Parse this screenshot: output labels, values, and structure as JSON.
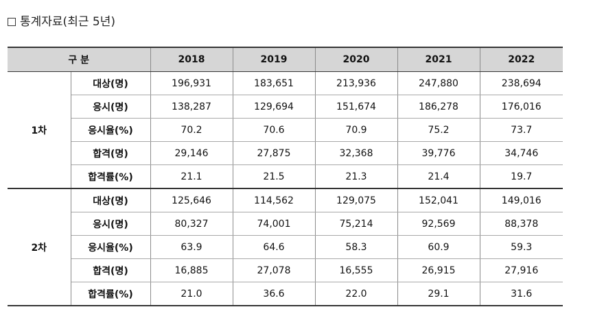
{
  "title": "통계자료(최근 5년)",
  "table": {
    "header": {
      "category": "구 분",
      "years": [
        "2018",
        "2019",
        "2020",
        "2021",
        "2022"
      ]
    },
    "groups": [
      {
        "name": "1차",
        "rows": [
          {
            "label": "대상(명)",
            "values": [
              "196,931",
              "183,651",
              "213,936",
              "247,880",
              "238,694"
            ]
          },
          {
            "label": "응시(명)",
            "values": [
              "138,287",
              "129,694",
              "151,674",
              "186,278",
              "176,016"
            ]
          },
          {
            "label": "응시율(%)",
            "values": [
              "70.2",
              "70.6",
              "70.9",
              "75.2",
              "73.7"
            ]
          },
          {
            "label": "합격(명)",
            "values": [
              "29,146",
              "27,875",
              "32,368",
              "39,776",
              "34,746"
            ]
          },
          {
            "label": "합격률(%)",
            "values": [
              "21.1",
              "21.5",
              "21.3",
              "21.4",
              "19.7"
            ]
          }
        ]
      },
      {
        "name": "2차",
        "rows": [
          {
            "label": "대상(명)",
            "values": [
              "125,646",
              "114,562",
              "129,075",
              "152,041",
              "149,016"
            ]
          },
          {
            "label": "응시(명)",
            "values": [
              "80,327",
              "74,001",
              "75,214",
              "92,569",
              "88,378"
            ]
          },
          {
            "label": "응시율(%)",
            "values": [
              "63.9",
              "64.6",
              "58.3",
              "60.9",
              "59.3"
            ]
          },
          {
            "label": "합격(명)",
            "values": [
              "16,885",
              "27,078",
              "16,555",
              "26,915",
              "27,916"
            ]
          },
          {
            "label": "합격률(%)",
            "values": [
              "21.0",
              "36.6",
              "22.0",
              "29.1",
              "31.6"
            ]
          }
        ]
      }
    ]
  }
}
